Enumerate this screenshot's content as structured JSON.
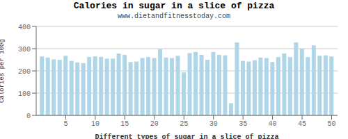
{
  "chart_data": {
    "type": "bar",
    "title": "Calories in sugar in a slice of pizza",
    "subtitle": "www.dietandfitnesstoday.com",
    "xlabel": "Different types of sugar in a slice of pizza",
    "ylabel": "Calories per 100g",
    "x": [
      1,
      2,
      3,
      4,
      5,
      6,
      7,
      8,
      9,
      10,
      11,
      12,
      13,
      14,
      15,
      16,
      17,
      18,
      19,
      20,
      21,
      22,
      23,
      24,
      25,
      26,
      27,
      28,
      29,
      30,
      31,
      32,
      33,
      34,
      35,
      36,
      37,
      38,
      39,
      40,
      41,
      42,
      43,
      44,
      45,
      46,
      47,
      48,
      49,
      50
    ],
    "values": [
      265,
      260,
      252,
      250,
      268,
      245,
      238,
      235,
      263,
      265,
      263,
      255,
      255,
      278,
      272,
      240,
      242,
      258,
      262,
      258,
      298,
      260,
      258,
      268,
      193,
      280,
      285,
      272,
      250,
      285,
      272,
      270,
      55,
      328,
      245,
      242,
      248,
      260,
      258,
      240,
      262,
      278,
      262,
      328,
      300,
      262,
      315,
      268,
      270,
      265
    ],
    "color": "#aed6e8",
    "xlim": [
      0,
      51
    ],
    "xticks": [
      5,
      10,
      15,
      20,
      25,
      30,
      35,
      40,
      45,
      50
    ],
    "ylim": [
      0,
      400
    ],
    "yticks": [
      0,
      100,
      200,
      300,
      400
    ],
    "grid": true
  }
}
